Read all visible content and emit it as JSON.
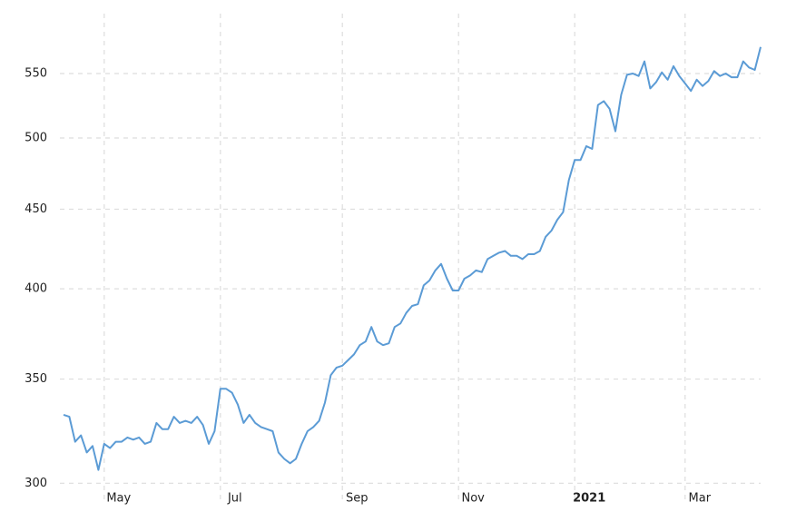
{
  "chart_data": {
    "type": "line",
    "yscale": "log",
    "grid": true,
    "color": "#5b9bd5",
    "categories": [
      null,
      null,
      null,
      null,
      null,
      null,
      null,
      "May",
      null,
      null,
      null,
      null,
      null,
      null,
      null,
      null,
      null,
      null,
      null,
      null,
      null,
      null,
      null,
      null,
      null,
      null,
      null,
      "Jul",
      null,
      null,
      null,
      null,
      null,
      null,
      null,
      null,
      null,
      null,
      null,
      null,
      null,
      null,
      null,
      null,
      null,
      null,
      null,
      null,
      "Sep",
      null,
      null,
      null,
      null,
      null,
      null,
      null,
      null,
      null,
      null,
      null,
      null,
      null,
      null,
      null,
      null,
      null,
      null,
      null,
      "Nov",
      null,
      null,
      null,
      null,
      null,
      null,
      null,
      null,
      null,
      null,
      null,
      null,
      null,
      null,
      null,
      null,
      null,
      null,
      null,
      "2021",
      null,
      null,
      null,
      null,
      null,
      null,
      null,
      null,
      null,
      null,
      null,
      null,
      null,
      null,
      null,
      null,
      null,
      null,
      "Mar",
      null,
      null,
      null,
      null,
      null,
      null,
      null,
      null,
      null,
      null,
      null,
      null,
      null
    ],
    "values": [
      332,
      331,
      319,
      322,
      314,
      317,
      306,
      318,
      316,
      319,
      319,
      321,
      320,
      321,
      318,
      319,
      328,
      325,
      325,
      331,
      328,
      329,
      328,
      331,
      327,
      318,
      324,
      345,
      345,
      343,
      337,
      328,
      332,
      328,
      326,
      325,
      324,
      314,
      311,
      309,
      311,
      318,
      324,
      326,
      329,
      338,
      352,
      356,
      357,
      360,
      363,
      368,
      370,
      378,
      370,
      368,
      369,
      378,
      380,
      386,
      390,
      391,
      402,
      405,
      411,
      415,
      406,
      399,
      399,
      406,
      408,
      411,
      410,
      418,
      420,
      422,
      423,
      420,
      420,
      418,
      421,
      421,
      423,
      432,
      436,
      443,
      448,
      470,
      484,
      484,
      494,
      492,
      525,
      528,
      522,
      505,
      533,
      549,
      550,
      548,
      560,
      538,
      543,
      551,
      545,
      556,
      548,
      542,
      536,
      545,
      540,
      544,
      552,
      548,
      550,
      547,
      547,
      560,
      555,
      553,
      572
    ],
    "ylim": [
      291,
      601
    ],
    "yticks": [
      300,
      350,
      400,
      450,
      500,
      550
    ]
  }
}
